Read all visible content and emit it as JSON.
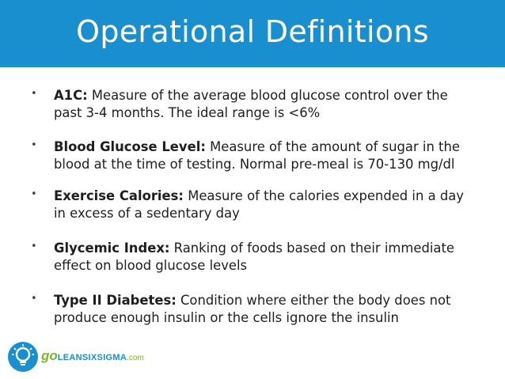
{
  "slide": {
    "title": "Operational Definitions"
  },
  "definitions": [
    {
      "bullet": "•",
      "term": "A1C:",
      "text": " Measure of the average blood glucose control over the past 3-4 months. The ideal range is <6%"
    },
    {
      "bullet": "•",
      "term": "Blood Glucose Level:",
      "text": " Measure of the amount of sugar in the blood at the time of testing. Normal pre-meal is 70-130 mg/dl"
    },
    {
      "bullet": "•",
      "term": "Exercise Calories:",
      "text": " Measure of the calories expended in a day in excess of a sedentary day"
    },
    {
      "bullet": "•",
      "term": "Glycemic Index:",
      "text": " Ranking of foods based on their immediate effect on blood glucose levels"
    },
    {
      "bullet": "•",
      "term": "Type II Diabetes:",
      "text": " Condition where either the body does not produce enough insulin or the cells ignore the insulin"
    }
  ],
  "logo": {
    "prefix": "go",
    "name": "LEANSIXSIGMA",
    "suffix": ".com",
    "icon": "lightbulb-icon"
  },
  "colors": {
    "header": "#1a8fd0",
    "logo_green": "#7bb62f"
  }
}
